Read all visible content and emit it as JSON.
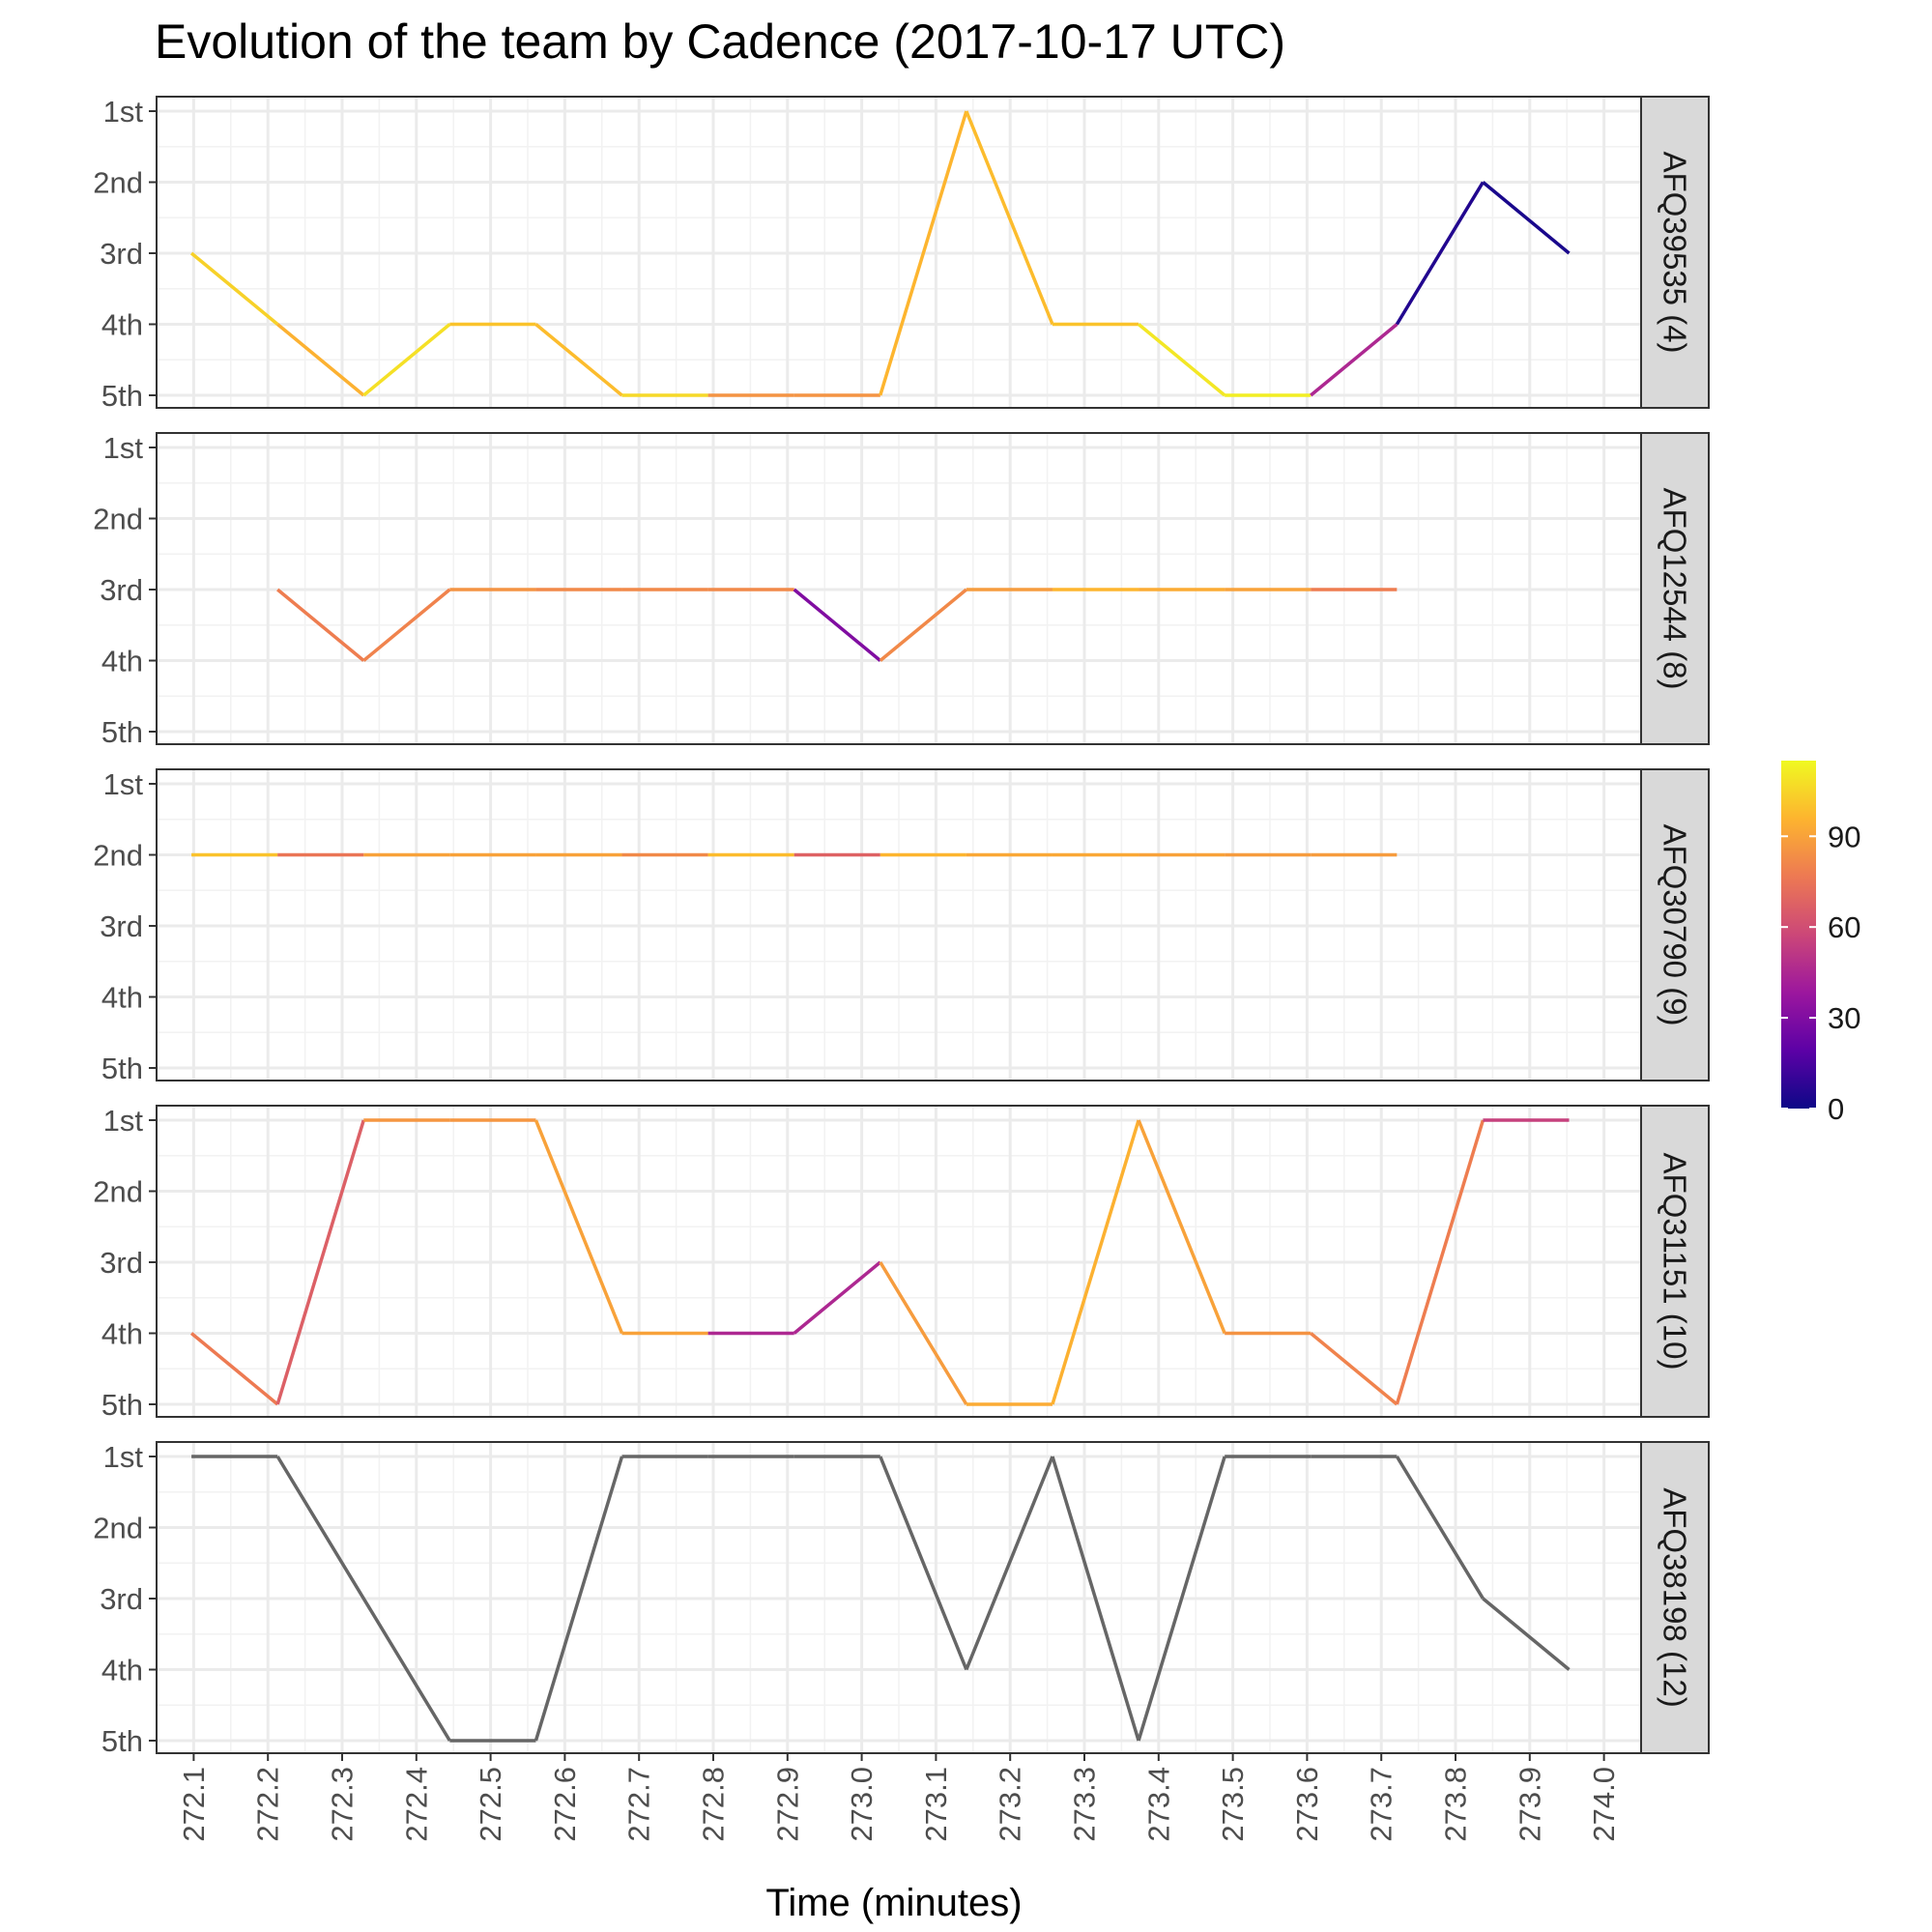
{
  "chart_data": {
    "type": "line",
    "title": "Evolution of the team by Cadence (2017-10-17 UTC)",
    "xlabel": "Time (minutes)",
    "ylabel": "",
    "xlim": [
      272.05,
      274.05
    ],
    "x_ticks": [
      "272.1",
      "272.2",
      "272.3",
      "272.4",
      "272.5",
      "272.6",
      "272.7",
      "272.8",
      "272.9",
      "273.0",
      "273.1",
      "273.2",
      "273.3",
      "273.4",
      "273.5",
      "273.6",
      "273.7",
      "273.8",
      "273.9",
      "274.0"
    ],
    "y_categories": [
      "1st",
      "2nd",
      "3rd",
      "4th",
      "5th"
    ],
    "grid": true,
    "color_scale": {
      "name": "Cadence",
      "min": 0,
      "max": 115,
      "ticks": [
        "0",
        "30",
        "60",
        "90"
      ],
      "palette": [
        "#0d0887",
        "#5c01a6",
        "#9c179e",
        "#cc4778",
        "#ed7953",
        "#fdb42f",
        "#f0f921"
      ],
      "placement": "right"
    },
    "facets": [
      {
        "label": "AFQ39535 (4)",
        "points": [
          {
            "x": 272.097,
            "rank": 3,
            "cadence": 104
          },
          {
            "x": 272.213,
            "rank": 4,
            "cadence": 95
          },
          {
            "x": 272.329,
            "rank": 5,
            "cadence": 108
          },
          {
            "x": 272.445,
            "rank": 4,
            "cadence": 100
          },
          {
            "x": 272.561,
            "rank": 4,
            "cadence": 98
          },
          {
            "x": 272.677,
            "rank": 5,
            "cadence": 106
          },
          {
            "x": 272.793,
            "rank": 5,
            "cadence": 85
          },
          {
            "x": 272.909,
            "rank": 5,
            "cadence": 85
          },
          {
            "x": 273.025,
            "rank": 5,
            "cadence": 96
          },
          {
            "x": 273.141,
            "rank": 1,
            "cadence": 98
          },
          {
            "x": 273.257,
            "rank": 4,
            "cadence": 100
          },
          {
            "x": 273.373,
            "rank": 4,
            "cadence": 110
          },
          {
            "x": 273.489,
            "rank": 5,
            "cadence": 112
          },
          {
            "x": 273.605,
            "rank": 5,
            "cadence": 45
          },
          {
            "x": 273.721,
            "rank": 4,
            "cadence": 5
          },
          {
            "x": 273.837,
            "rank": 2,
            "cadence": 3
          },
          {
            "x": 273.953,
            "rank": 3,
            "cadence": 3
          }
        ]
      },
      {
        "label": "AFQ12544 (8)",
        "points": [
          {
            "x": 272.213,
            "rank": 3,
            "cadence": 78
          },
          {
            "x": 272.329,
            "rank": 4,
            "cadence": 80
          },
          {
            "x": 272.445,
            "rank": 3,
            "cadence": 85
          },
          {
            "x": 272.561,
            "rank": 3,
            "cadence": 82
          },
          {
            "x": 272.677,
            "rank": 3,
            "cadence": 82
          },
          {
            "x": 272.793,
            "rank": 3,
            "cadence": 82
          },
          {
            "x": 272.909,
            "rank": 3,
            "cadence": 30
          },
          {
            "x": 273.025,
            "rank": 4,
            "cadence": 82
          },
          {
            "x": 273.141,
            "rank": 3,
            "cadence": 88
          },
          {
            "x": 273.257,
            "rank": 3,
            "cadence": 96
          },
          {
            "x": 273.373,
            "rank": 3,
            "cadence": 93
          },
          {
            "x": 273.489,
            "rank": 3,
            "cadence": 90
          },
          {
            "x": 273.605,
            "rank": 3,
            "cadence": 78
          },
          {
            "x": 273.721,
            "rank": 3,
            "cadence": 78
          }
        ]
      },
      {
        "label": "AFQ30790 (9)",
        "points": [
          {
            "x": 272.097,
            "rank": 2,
            "cadence": 100
          },
          {
            "x": 272.213,
            "rank": 2,
            "cadence": 75
          },
          {
            "x": 272.329,
            "rank": 2,
            "cadence": 90
          },
          {
            "x": 272.445,
            "rank": 2,
            "cadence": 90
          },
          {
            "x": 272.561,
            "rank": 2,
            "cadence": 90
          },
          {
            "x": 272.677,
            "rank": 2,
            "cadence": 82
          },
          {
            "x": 272.793,
            "rank": 2,
            "cadence": 98
          },
          {
            "x": 272.909,
            "rank": 2,
            "cadence": 68
          },
          {
            "x": 273.025,
            "rank": 2,
            "cadence": 96
          },
          {
            "x": 273.141,
            "rank": 2,
            "cadence": 92
          },
          {
            "x": 273.257,
            "rank": 2,
            "cadence": 92
          },
          {
            "x": 273.373,
            "rank": 2,
            "cadence": 90
          },
          {
            "x": 273.489,
            "rank": 2,
            "cadence": 88
          },
          {
            "x": 273.605,
            "rank": 2,
            "cadence": 88
          },
          {
            "x": 273.721,
            "rank": 2,
            "cadence": 88
          }
        ]
      },
      {
        "label": "AFQ31151 (10)",
        "points": [
          {
            "x": 272.097,
            "rank": 4,
            "cadence": 77
          },
          {
            "x": 272.213,
            "rank": 5,
            "cadence": 67
          },
          {
            "x": 272.329,
            "rank": 1,
            "cadence": 86
          },
          {
            "x": 272.445,
            "rank": 1,
            "cadence": 86
          },
          {
            "x": 272.561,
            "rank": 1,
            "cadence": 90
          },
          {
            "x": 272.677,
            "rank": 4,
            "cadence": 90
          },
          {
            "x": 272.793,
            "rank": 4,
            "cadence": 45
          },
          {
            "x": 272.909,
            "rank": 4,
            "cadence": 45
          },
          {
            "x": 273.025,
            "rank": 3,
            "cadence": 88
          },
          {
            "x": 273.141,
            "rank": 5,
            "cadence": 93
          },
          {
            "x": 273.257,
            "rank": 5,
            "cadence": 95
          },
          {
            "x": 273.373,
            "rank": 1,
            "cadence": 90
          },
          {
            "x": 273.489,
            "rank": 4,
            "cadence": 85
          },
          {
            "x": 273.605,
            "rank": 4,
            "cadence": 80
          },
          {
            "x": 273.721,
            "rank": 5,
            "cadence": 78
          },
          {
            "x": 273.837,
            "rank": 1,
            "cadence": 55
          },
          {
            "x": 273.953,
            "rank": 1,
            "cadence": 55
          }
        ]
      },
      {
        "label": "AFQ38198 (12)",
        "color": "#666666",
        "points": [
          {
            "x": 272.097,
            "rank": 1
          },
          {
            "x": 272.213,
            "rank": 1
          },
          {
            "x": 272.445,
            "rank": 5
          },
          {
            "x": 272.561,
            "rank": 5
          },
          {
            "x": 272.677,
            "rank": 1
          },
          {
            "x": 272.793,
            "rank": 1
          },
          {
            "x": 272.909,
            "rank": 1
          },
          {
            "x": 273.025,
            "rank": 1
          },
          {
            "x": 273.141,
            "rank": 4
          },
          {
            "x": 273.257,
            "rank": 1
          },
          {
            "x": 273.373,
            "rank": 5
          },
          {
            "x": 273.489,
            "rank": 1
          },
          {
            "x": 273.605,
            "rank": 1
          },
          {
            "x": 273.721,
            "rank": 1
          },
          {
            "x": 273.837,
            "rank": 3
          },
          {
            "x": 273.953,
            "rank": 4
          }
        ]
      }
    ]
  }
}
